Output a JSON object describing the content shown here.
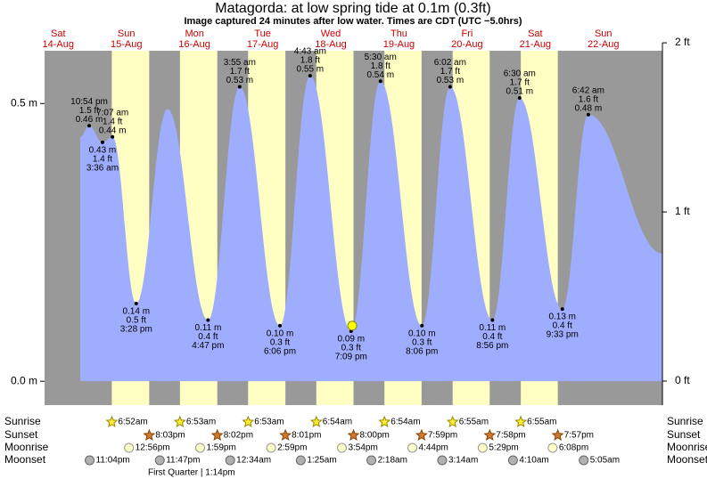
{
  "chart_data": {
    "type": "area",
    "title": "Matagorda: at low  spring tide at 0.1m (0.3ft)",
    "subtitle": "Image captured 24 minutes after low water. Times are CDT (UTC −5.0hrs)",
    "xlim": [
      7.2,
      224.8
    ],
    "ylim": [
      -0.043,
      0.595
    ],
    "yticks": [
      {
        "value": 0,
        "label": "0.0 m"
      },
      {
        "value": 0.5,
        "label": "0.5 m"
      }
    ],
    "y2lim": [
      -0.142,
      1.953
    ],
    "y2ticks": [
      {
        "value": 0,
        "label": "0 ft"
      },
      {
        "value": 1,
        "label": "1 ft"
      },
      {
        "value": 2,
        "label": "2 ft"
      }
    ],
    "days": {
      "x": [
        12,
        36,
        60,
        84,
        108,
        132,
        156,
        180,
        204
      ],
      "names": [
        "Sat",
        "Sun",
        "Mon",
        "Tue",
        "Wed",
        "Thu",
        "Fri",
        "Sat",
        "Sun"
      ],
      "dates": [
        "14-Aug",
        "15-Aug",
        "16-Aug",
        "17-Aug",
        "18-Aug",
        "19-Aug",
        "20-Aug",
        "21-Aug",
        "22-Aug"
      ]
    },
    "tide": {
      "color": "#9fadff",
      "x": [
        19.8,
        22.9,
        27.6,
        31.12,
        39.47,
        50.5,
        64.78,
        75.92,
        90.1,
        100.72,
        115.15,
        125.5,
        140.1,
        150.03,
        164.93,
        174.5,
        189.55,
        198.7,
        224.8
      ],
      "values": [
        0.44,
        0.46,
        0.43,
        0.44,
        0.14,
        0.49,
        0.11,
        0.53,
        0.1,
        0.55,
        0.09,
        0.54,
        0.1,
        0.53,
        0.11,
        0.51,
        0.13,
        0.48,
        0.23
      ],
      "value_labels": [
        null,
        "0.46 m",
        "0.43 m",
        "0.44 m",
        "0.14 m",
        null,
        "0.11 m",
        "0.53 m",
        "0.10 m",
        "0.55 m",
        "0.09 m",
        "0.54 m",
        "0.10 m",
        "0.53 m",
        "0.11 m",
        "0.51 m",
        "0.13 m",
        "0.48 m",
        null
      ],
      "ft_labels": [
        null,
        "1.5 ft",
        "1.4 ft",
        "1.4 ft",
        "0.5 ft",
        null,
        "0.4 ft",
        "1.7 ft",
        "0.3 ft",
        "1.8 ft",
        "0.3 ft",
        "1.8 ft",
        "0.3 ft",
        "1.7 ft",
        "0.4 ft",
        "1.7 ft",
        "0.4 ft",
        "1.6 ft",
        null
      ],
      "times": [
        null,
        "10:54 pm",
        "3:36 am",
        "7:07 am",
        "3:28 pm",
        null,
        "4:47 pm",
        "3:55 am",
        "6:06 pm",
        "4:43 am",
        "7:09 pm",
        "5:30 am",
        "8:06 pm",
        "6:02 am",
        "8:56 pm",
        "6:30 am",
        "9:33 pm",
        "6:42 am",
        null
      ]
    },
    "now": {
      "x": 115.55,
      "value": 0.1
    },
    "sunrise": {
      "label": "Sunrise",
      "color": "#ffee33",
      "x": [
        30.87,
        54.88,
        78.88,
        102.9,
        126.9,
        150.92,
        174.92
      ],
      "times": [
        "6:52am",
        "6:53am",
        "6:53am",
        "6:54am",
        "6:54am",
        "6:55am",
        "6:55am"
      ]
    },
    "sunset": {
      "label": "Sunset",
      "color": "#d07a30",
      "x": [
        44.05,
        68.03,
        92.02,
        116.0,
        139.98,
        163.97,
        187.95
      ],
      "times": [
        "8:03pm",
        "8:02pm",
        "8:01pm",
        "8:00pm",
        "7:59pm",
        "7:58pm",
        "7:57pm"
      ]
    },
    "moonrise": {
      "label": "Moonrise",
      "color": "#ffffc8",
      "x": [
        36.93,
        61.98,
        86.98,
        111.9,
        136.73,
        161.48,
        186.13
      ],
      "times": [
        "12:56pm",
        "1:59pm",
        "2:59pm",
        "3:54pm",
        "4:44pm",
        "5:29pm",
        "6:08pm"
      ]
    },
    "moonset": {
      "label": "Moonset",
      "color": "#b0b0b0",
      "x": [
        23.07,
        47.78,
        72.57,
        97.42,
        122.3,
        147.23,
        172.17,
        197.08
      ],
      "times": [
        "11:04pm",
        "11:47pm",
        "12:34am",
        "1:25am",
        "2:18am",
        "3:14am",
        "4:10am",
        "5:05am"
      ]
    },
    "moon_phase": "First Quarter | 1:14pm"
  }
}
